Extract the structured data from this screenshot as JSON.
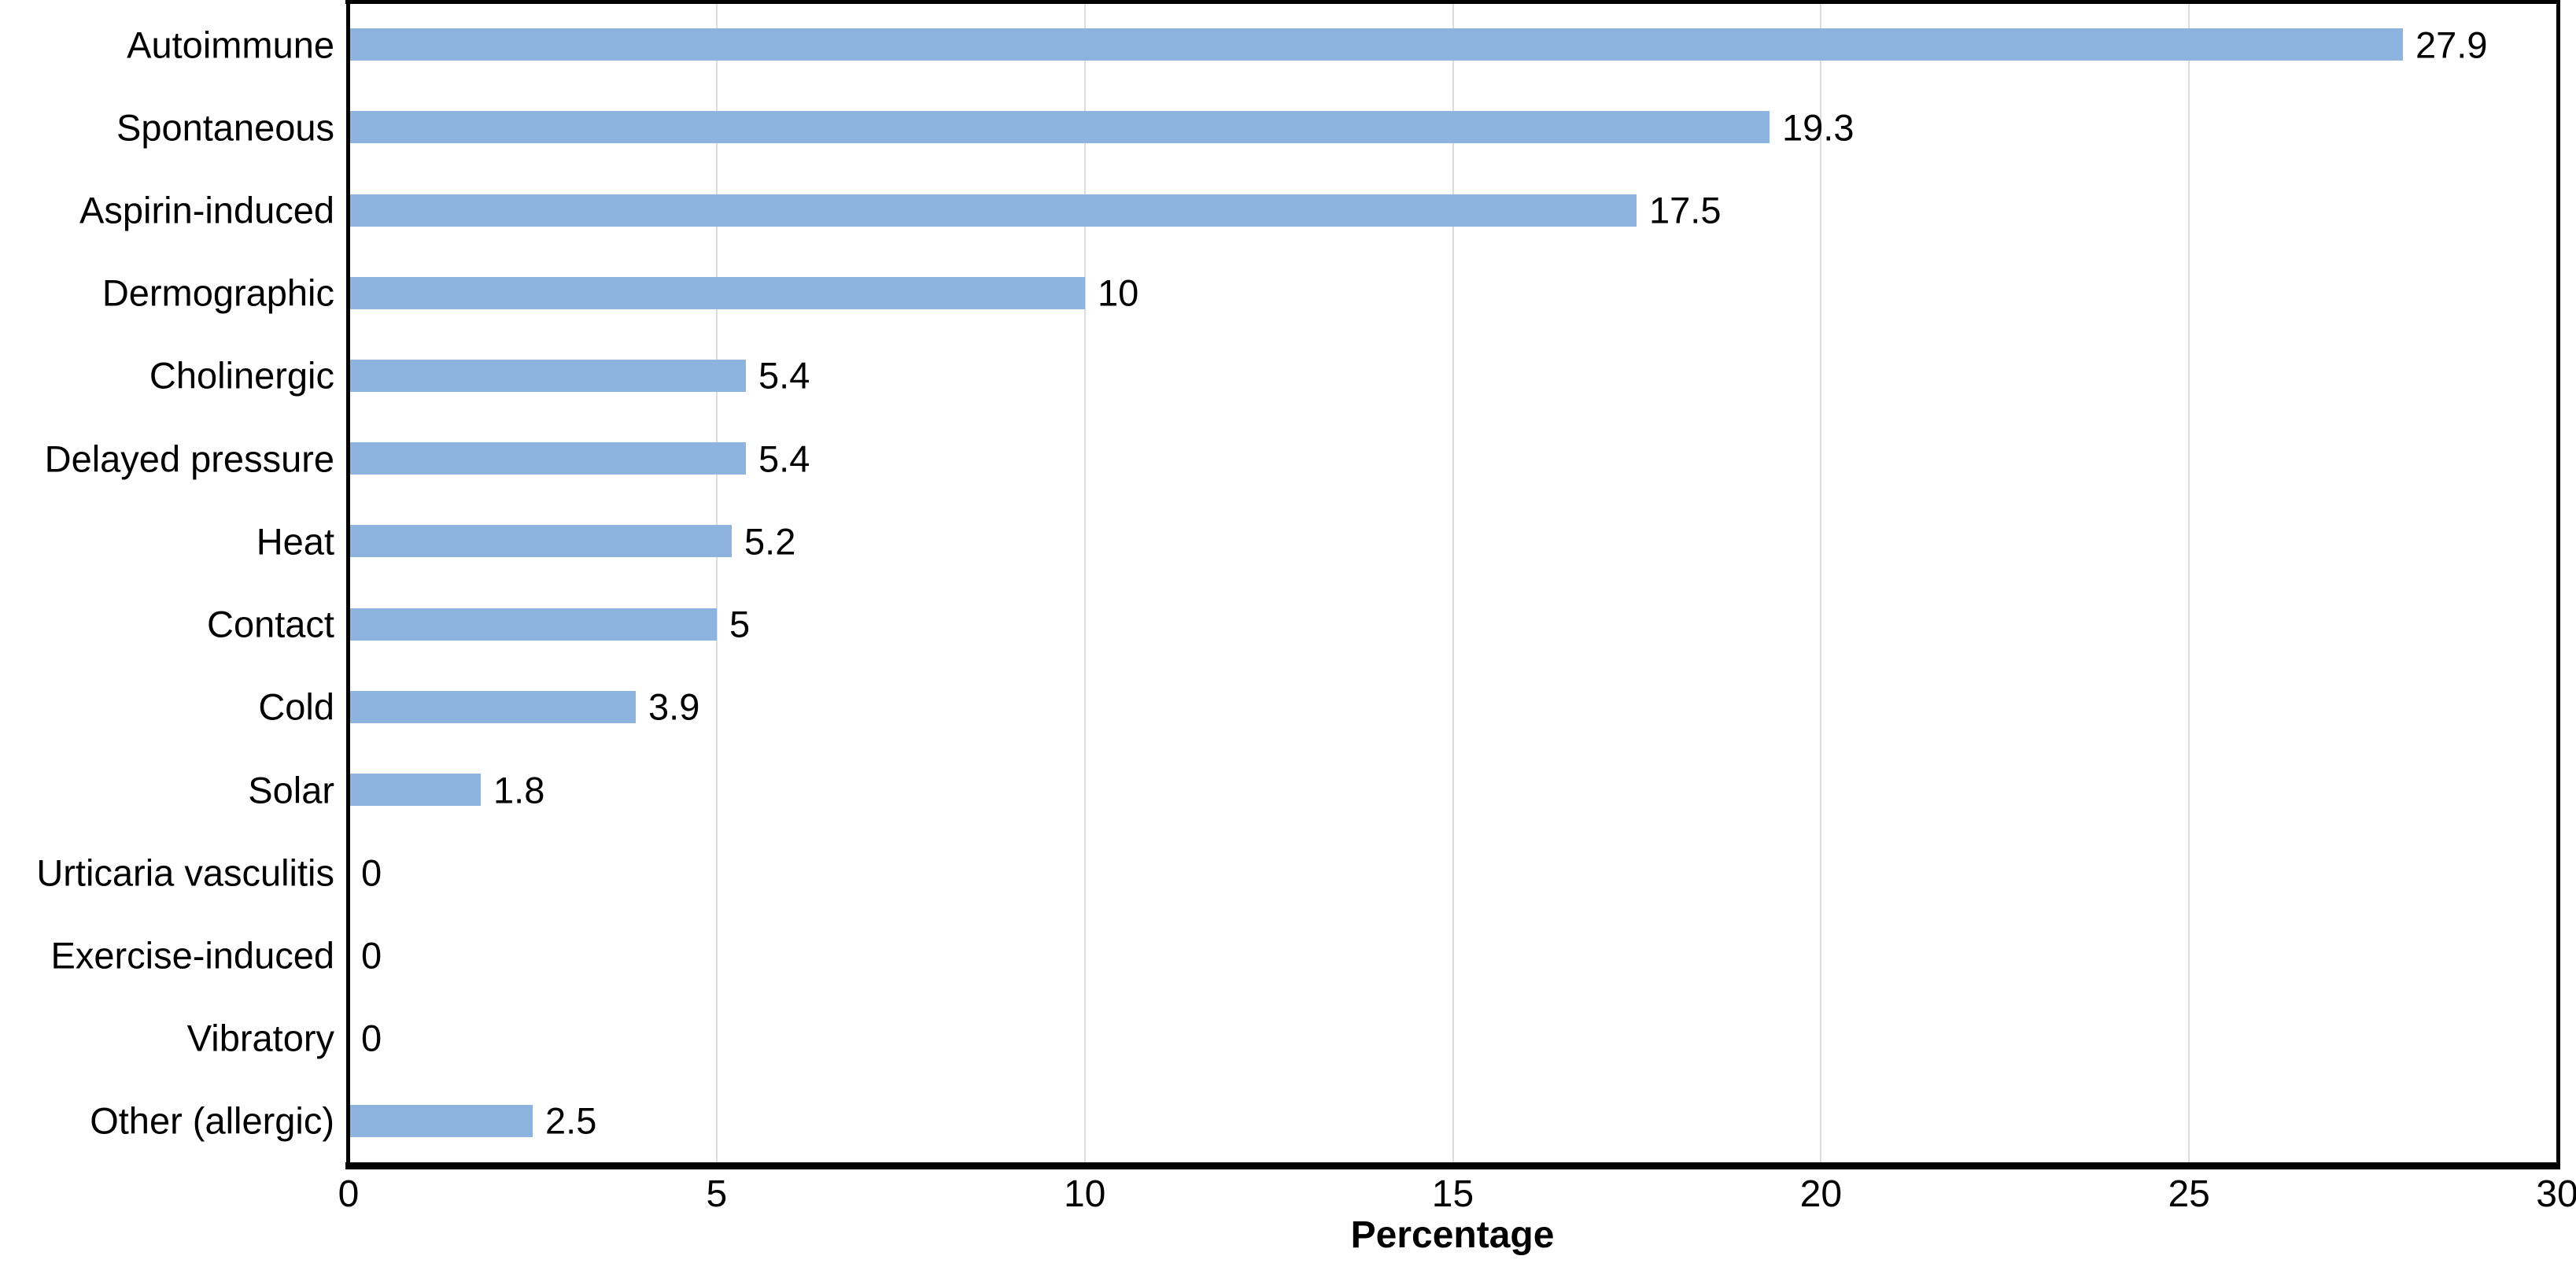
{
  "chart_data": {
    "type": "bar",
    "orientation": "horizontal",
    "title": "",
    "xlabel": "Percentage",
    "ylabel": "",
    "xlim": [
      0,
      30
    ],
    "x_ticks": [
      "0",
      "5",
      "10",
      "15",
      "20",
      "25",
      "30"
    ],
    "grid": "vertical-gridlines-at-ticks",
    "legend": "none",
    "categories": [
      "Autoimmune",
      "Spontaneous",
      "Aspirin-induced",
      "Dermographic",
      "Cholinergic",
      "Delayed pressure",
      "Heat",
      "Contact",
      "Cold",
      "Solar",
      "Urticaria vasculitis",
      "Exercise-induced",
      "Vibratory",
      "Other (allergic)"
    ],
    "values": [
      27.9,
      19.3,
      17.5,
      10,
      5.4,
      5.4,
      5.2,
      5,
      3.9,
      1.8,
      0,
      0,
      0,
      2.5
    ],
    "value_labels": [
      "27.9",
      "19.3",
      "17.5",
      "10",
      "5.4",
      "5.4",
      "5.2",
      "5",
      "3.9",
      "1.8",
      "0",
      "0",
      "0",
      "2.5"
    ],
    "colors": {
      "bar_fill": "#8CB4DE",
      "axis_line": "#000000",
      "gridline": "#DCDCDC",
      "text": "#000000",
      "background": "#FFFFFF"
    }
  }
}
